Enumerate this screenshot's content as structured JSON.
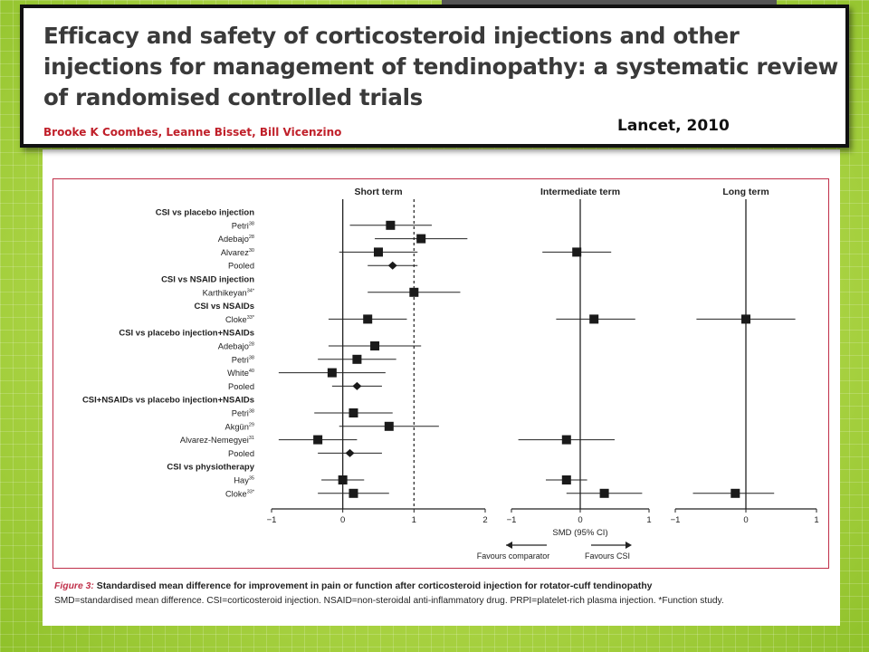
{
  "slide": {
    "paper_title": "Efficacy and safety of corticosteroid injections and other injections for management of tendinopathy: a systematic review of randomised controlled trials",
    "authors": "Brooke K Coombes, Leanne Bisset, Bill Vicenzino",
    "journal": "Lancet, 2010"
  },
  "figure": {
    "panel_titles": [
      "Short term",
      "Intermediate term",
      "Long term"
    ],
    "x_axis_label": "SMD (95% CI)",
    "favours_left": "Favours comparator",
    "favours_right": "Favours CSI",
    "caption_title": "Figure 3:",
    "caption_rest": " Standardised mean difference for improvement in pain or function after corticosteroid injection for rotator-cuff tendinopathy",
    "caption_line2": "SMD=standardised mean difference. CSI=corticosteroid injection. NSAID=non-steroidal anti-inflammatory drug. PRPI=platelet-rich plasma injection. *Function study."
  },
  "chart_data": {
    "type": "scatter",
    "subtype": "forest-plot",
    "panels": [
      {
        "name": "Short term",
        "xlim": [
          -1,
          2
        ],
        "ticks": [
          "-1",
          "0",
          "1",
          "2"
        ]
      },
      {
        "name": "Intermediate term",
        "xlim": [
          -1,
          1
        ],
        "ticks": [
          "-1",
          "0",
          "1"
        ]
      },
      {
        "name": "Long term",
        "xlim": [
          -1,
          1
        ],
        "ticks": [
          "-1",
          "0",
          "1"
        ]
      }
    ],
    "reference_line_short_term": 1,
    "rows": [
      {
        "label": "CSI vs placebo injection",
        "header": true
      },
      {
        "label": "Petri",
        "sup": "38",
        "short": [
          0.67,
          0.1,
          1.25
        ]
      },
      {
        "label": "Adebajo",
        "sup": "28",
        "short": [
          1.1,
          0.45,
          1.75
        ]
      },
      {
        "label": "Alvarez",
        "sup": "30",
        "short": [
          0.5,
          -0.05,
          1.05
        ],
        "intermediate": [
          -0.05,
          -0.55,
          0.45
        ]
      },
      {
        "label": "Pooled",
        "short": [
          0.7,
          0.35,
          1.05
        ],
        "pooled": true
      },
      {
        "label": "CSI vs NSAID injection",
        "header": true
      },
      {
        "label": "Karthikeyan",
        "sup": "34*",
        "short": [
          1.0,
          0.35,
          1.65
        ]
      },
      {
        "label": "CSI vs NSAIDs",
        "header": true
      },
      {
        "label": "Cloke",
        "sup": "33*",
        "short": [
          0.35,
          -0.2,
          0.9
        ],
        "intermediate": [
          0.2,
          -0.35,
          0.8
        ],
        "long": [
          0.0,
          -0.7,
          0.7
        ]
      },
      {
        "label": "CSI vs placebo injection+NSAIDs",
        "header": true
      },
      {
        "label": "Adebajo",
        "sup": "28",
        "short": [
          0.45,
          -0.2,
          1.1
        ]
      },
      {
        "label": "Petri",
        "sup": "38",
        "short": [
          0.2,
          -0.35,
          0.75
        ]
      },
      {
        "label": "White",
        "sup": "40",
        "short": [
          -0.15,
          -0.9,
          0.6
        ]
      },
      {
        "label": "Pooled",
        "short": [
          0.2,
          -0.15,
          0.55
        ],
        "pooled": true
      },
      {
        "label": "CSI+NSAIDs vs placebo injection+NSAIDs",
        "header": true
      },
      {
        "label": "Petri",
        "sup": "38",
        "short": [
          0.15,
          -0.4,
          0.7
        ]
      },
      {
        "label": "Akgün",
        "sup": "29",
        "short": [
          0.65,
          -0.05,
          1.35
        ]
      },
      {
        "label": "Alvarez-Nemegyei",
        "sup": "31",
        "short": [
          -0.35,
          -0.9,
          0.2
        ],
        "intermediate": [
          -0.2,
          -0.9,
          0.5
        ]
      },
      {
        "label": "Pooled",
        "short": [
          0.1,
          -0.35,
          0.55
        ],
        "pooled": true
      },
      {
        "label": "CSI vs physiotherapy",
        "header": true
      },
      {
        "label": "Hay",
        "sup": "35",
        "short": [
          0.0,
          -0.3,
          0.3
        ],
        "intermediate": [
          -0.2,
          -0.5,
          0.1
        ]
      },
      {
        "label": "Cloke",
        "sup": "33*",
        "short": [
          0.15,
          -0.35,
          0.65
        ],
        "intermediate": [
          0.35,
          -0.2,
          0.9
        ],
        "long": [
          -0.15,
          -0.75,
          0.4
        ]
      }
    ]
  },
  "colors": {
    "background": "#b7dc4f",
    "frame": "#c0304a",
    "authors": "#c0202a",
    "marker": "#1a1a1a"
  }
}
